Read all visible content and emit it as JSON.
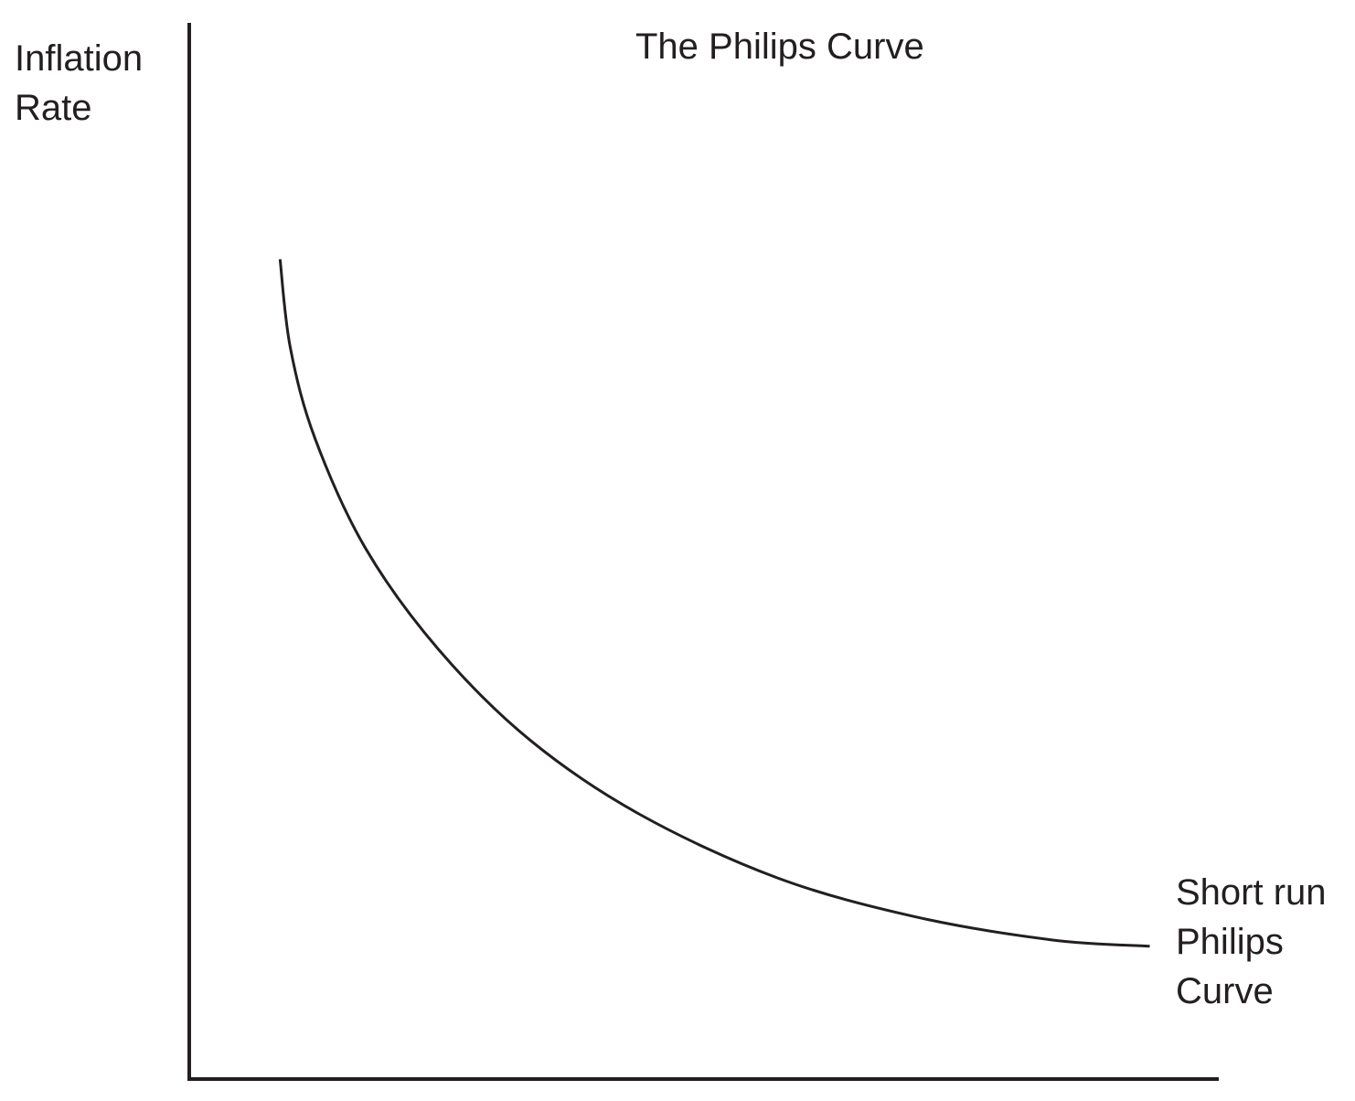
{
  "chart_data": {
    "type": "line",
    "title": "The Philips Curve",
    "ylabel_lines": [
      "Inflation",
      "Rate"
    ],
    "xlabel": "",
    "xlim": [
      0,
      100
    ],
    "ylim": [
      0,
      100
    ],
    "grid": false,
    "ticks": false,
    "series": [
      {
        "name": "Short run Philips Curve",
        "label_lines": [
          "Short run",
          "Philips",
          "Curve"
        ],
        "color": "#231f20",
        "x": [
          8.9,
          9.9,
          12.3,
          17.2,
          24.3,
          33.2,
          43.8,
          57.1,
          70.5,
          83.8,
          93.3
        ],
        "y": [
          77.6,
          69.2,
          60.6,
          50.2,
          40.6,
          32.0,
          25.0,
          19.0,
          15.3,
          13.1,
          12.5
        ]
      }
    ]
  }
}
